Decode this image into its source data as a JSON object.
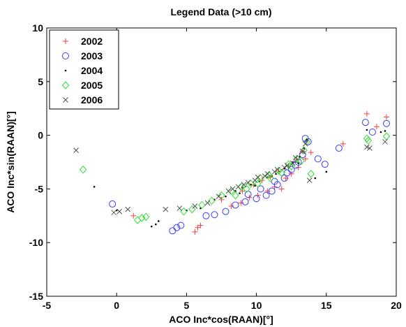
{
  "chart_data": {
    "type": "scatter",
    "title": "Legend Data (>10 cm)",
    "xlabel": "ACO Inc*cos(RAAN)[°]",
    "ylabel": "ACO Inc*sin(RAAN)[°]",
    "xlim": [
      -5,
      20
    ],
    "ylim": [
      -15,
      10
    ],
    "xticks": [
      "-5",
      "0",
      "5",
      "10",
      "15",
      "20"
    ],
    "yticks": [
      "10",
      "5",
      "0",
      "-5",
      "-10",
      "-15"
    ],
    "grid": false,
    "legend_position": "top-left",
    "series": [
      {
        "name": "2002",
        "marker": "plus",
        "color": "#ff3b3b",
        "points": [
          [
            1.2,
            -7.5
          ],
          [
            5.6,
            -9.0
          ],
          [
            5.8,
            -8.6
          ],
          [
            6.0,
            -8.4
          ],
          [
            7.5,
            -6.0
          ],
          [
            8.2,
            -6.6
          ],
          [
            8.9,
            -6.3
          ],
          [
            9.5,
            -5.8
          ],
          [
            10.1,
            -5.6
          ],
          [
            10.8,
            -5.2
          ],
          [
            11.3,
            -4.8
          ],
          [
            11.8,
            -5.0
          ],
          [
            12.1,
            -4.0
          ],
          [
            12.5,
            -3.6
          ],
          [
            13.0,
            -3.0
          ],
          [
            13.5,
            -2.2
          ],
          [
            13.9,
            -1.6
          ],
          [
            16.2,
            -0.8
          ],
          [
            17.9,
            2.0
          ],
          [
            18.6,
            0.8
          ],
          [
            19.3,
            1.7
          ],
          [
            9.0,
            -5.2
          ],
          [
            9.8,
            -4.6
          ],
          [
            10.4,
            -4.2
          ],
          [
            11.0,
            -3.9
          ],
          [
            11.6,
            -3.4
          ],
          [
            12.3,
            -2.9
          ],
          [
            12.9,
            -2.3
          ],
          [
            13.3,
            -1.5
          ],
          [
            13.6,
            -0.5
          ]
        ]
      },
      {
        "name": "2003",
        "marker": "circle",
        "color": "#3b3bff",
        "points": [
          [
            -0.3,
            -6.4
          ],
          [
            4.0,
            -8.9
          ],
          [
            4.3,
            -8.6
          ],
          [
            4.6,
            -8.4
          ],
          [
            6.4,
            -7.5
          ],
          [
            7.0,
            -7.4
          ],
          [
            7.8,
            -7.1
          ],
          [
            8.5,
            -6.5
          ],
          [
            9.2,
            -6.2
          ],
          [
            10.0,
            -5.9
          ],
          [
            10.7,
            -5.6
          ],
          [
            11.1,
            -5.2
          ],
          [
            11.5,
            -4.6
          ],
          [
            12.0,
            -4.0
          ],
          [
            12.5,
            -3.2
          ],
          [
            13.0,
            -2.5
          ],
          [
            13.3,
            -1.8
          ],
          [
            13.5,
            -0.3
          ],
          [
            13.7,
            -0.6
          ],
          [
            14.4,
            -2.2
          ],
          [
            14.9,
            -2.7
          ],
          [
            15.9,
            -1.2
          ],
          [
            17.8,
            1.2
          ],
          [
            18.3,
            0.3
          ],
          [
            19.3,
            1.1
          ],
          [
            9.4,
            -5.5
          ],
          [
            10.3,
            -5.0
          ],
          [
            11.3,
            -4.3
          ],
          [
            12.2,
            -3.5
          ],
          [
            12.8,
            -2.8
          ]
        ]
      },
      {
        "name": "2004",
        "marker": "dot",
        "color": "#000000",
        "points": [
          [
            -1.6,
            -4.8
          ],
          [
            0.0,
            -7.0
          ],
          [
            2.5,
            -8.5
          ],
          [
            2.8,
            -8.3
          ],
          [
            3.0,
            -8.0
          ],
          [
            5.0,
            -7.0
          ],
          [
            6.0,
            -6.8
          ],
          [
            7.0,
            -6.0
          ],
          [
            7.8,
            -5.7
          ],
          [
            8.5,
            -5.2
          ],
          [
            9.0,
            -4.9
          ],
          [
            9.6,
            -4.6
          ],
          [
            10.2,
            -4.3
          ],
          [
            10.8,
            -3.9
          ],
          [
            11.4,
            -3.6
          ],
          [
            12.0,
            -3.1
          ],
          [
            12.6,
            -2.5
          ],
          [
            13.1,
            -2.0
          ],
          [
            13.4,
            -1.2
          ],
          [
            13.6,
            -0.4
          ],
          [
            14.2,
            -4.0
          ],
          [
            15.0,
            -3.4
          ],
          [
            17.9,
            0.5
          ],
          [
            18.9,
            0.3
          ],
          [
            19.2,
            0.4
          ],
          [
            8.8,
            -5.4
          ],
          [
            9.9,
            -4.7
          ],
          [
            11.1,
            -3.8
          ],
          [
            12.3,
            -3.0
          ],
          [
            13.0,
            -2.6
          ]
        ]
      },
      {
        "name": "2005",
        "marker": "diamond",
        "color": "#2ee02e",
        "points": [
          [
            -2.4,
            -3.2
          ],
          [
            1.5,
            -7.9
          ],
          [
            1.8,
            -7.7
          ],
          [
            2.1,
            -7.6
          ],
          [
            4.8,
            -7.1
          ],
          [
            5.4,
            -6.9
          ],
          [
            6.1,
            -6.5
          ],
          [
            6.8,
            -6.1
          ],
          [
            7.5,
            -5.6
          ],
          [
            8.2,
            -5.2
          ],
          [
            8.9,
            -4.8
          ],
          [
            9.6,
            -4.5
          ],
          [
            10.3,
            -4.0
          ],
          [
            10.9,
            -3.7
          ],
          [
            11.6,
            -3.3
          ],
          [
            12.3,
            -2.7
          ],
          [
            12.9,
            -2.2
          ],
          [
            13.4,
            -1.4
          ],
          [
            13.6,
            -0.6
          ],
          [
            13.9,
            -3.6
          ],
          [
            17.9,
            -0.3
          ],
          [
            18.0,
            -0.5
          ],
          [
            19.3,
            -0.1
          ],
          [
            8.5,
            -5.6
          ],
          [
            9.3,
            -5.0
          ],
          [
            10.1,
            -4.5
          ],
          [
            11.0,
            -4.0
          ],
          [
            11.8,
            -3.5
          ],
          [
            12.5,
            -2.9
          ],
          [
            13.2,
            -2.4
          ]
        ]
      },
      {
        "name": "2006",
        "marker": "x",
        "color": "#505050",
        "points": [
          [
            -2.9,
            -1.4
          ],
          [
            -0.2,
            -7.2
          ],
          [
            0.2,
            -7.1
          ],
          [
            0.8,
            -6.9
          ],
          [
            3.5,
            -6.9
          ],
          [
            4.5,
            -6.8
          ],
          [
            5.6,
            -6.6
          ],
          [
            6.5,
            -6.3
          ],
          [
            7.3,
            -5.7
          ],
          [
            8.0,
            -5.2
          ],
          [
            8.7,
            -4.8
          ],
          [
            9.4,
            -4.4
          ],
          [
            10.1,
            -3.9
          ],
          [
            10.8,
            -3.6
          ],
          [
            11.5,
            -3.2
          ],
          [
            12.2,
            -2.8
          ],
          [
            12.8,
            -2.1
          ],
          [
            13.3,
            -1.5
          ],
          [
            13.5,
            -0.8
          ],
          [
            13.8,
            -4.2
          ],
          [
            17.9,
            -1.1
          ],
          [
            18.1,
            -1.2
          ],
          [
            19.2,
            -0.6
          ],
          [
            8.3,
            -5.0
          ],
          [
            9.1,
            -4.6
          ],
          [
            9.9,
            -4.2
          ],
          [
            10.6,
            -3.8
          ],
          [
            11.3,
            -3.4
          ],
          [
            12.0,
            -3.0
          ],
          [
            12.6,
            -2.6
          ]
        ]
      }
    ]
  }
}
